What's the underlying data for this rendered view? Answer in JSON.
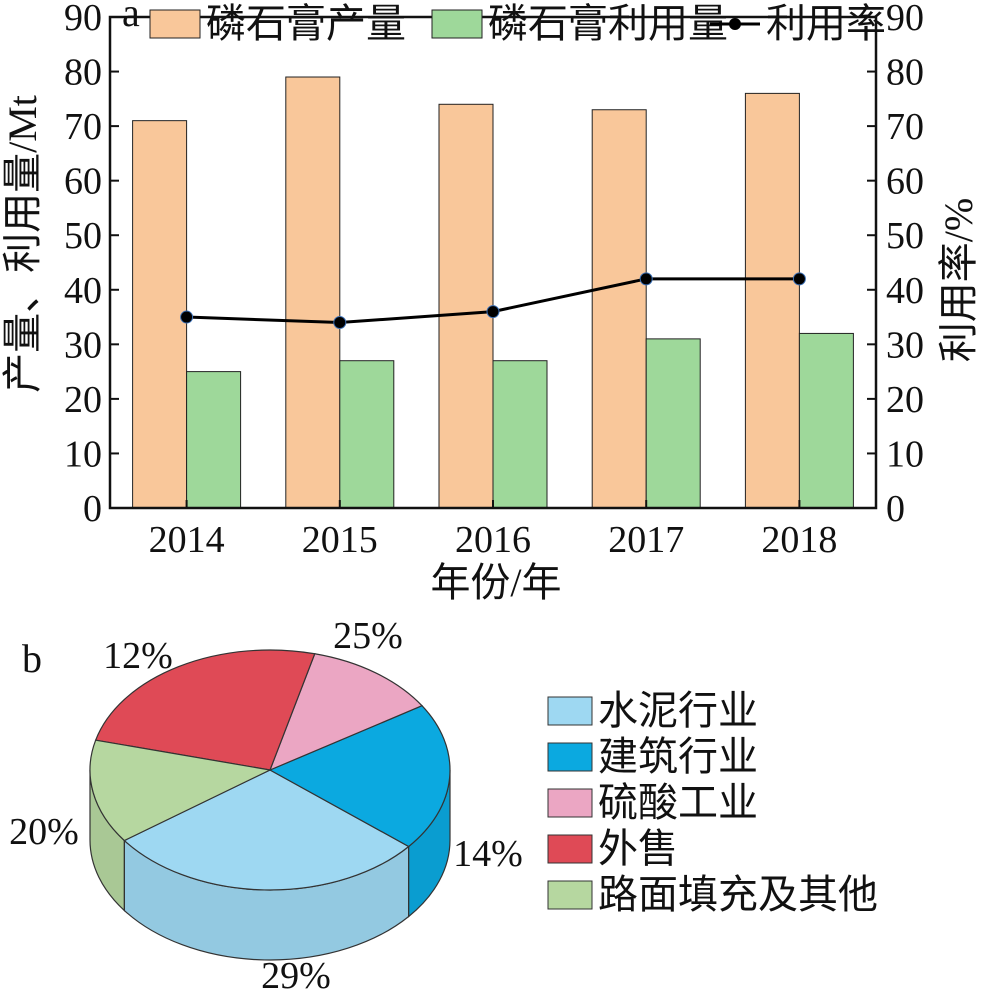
{
  "chart_data": [
    {
      "panel_label": "a",
      "type": "bar",
      "categories": [
        "2014",
        "2015",
        "2016",
        "2017",
        "2018"
      ],
      "series": [
        {
          "name": "磷石膏产量",
          "kind": "bar",
          "axis": "left",
          "color": "#F9C79A",
          "values": [
            71,
            79,
            74,
            73,
            76
          ]
        },
        {
          "name": "磷石膏利用量",
          "kind": "bar",
          "axis": "left",
          "color": "#9ED89A",
          "values": [
            25,
            27,
            27,
            31,
            32
          ]
        },
        {
          "name": "利用率",
          "kind": "line",
          "axis": "right",
          "color": "#000000",
          "values": [
            35,
            34,
            36,
            42,
            42
          ]
        }
      ],
      "xlabel": "年份/年",
      "ylabel": "产量、利用量/Mt",
      "y2label": "利用率/%",
      "ylim": [
        0,
        90
      ],
      "y2lim": [
        0,
        90
      ],
      "yticks": [
        0,
        10,
        20,
        30,
        40,
        50,
        60,
        70,
        80,
        90
      ],
      "legend_position": "top",
      "grid": false
    },
    {
      "panel_label": "b",
      "type": "pie",
      "style": "3d",
      "slices": [
        {
          "name": "水泥行业",
          "value": 29,
          "label": "29%",
          "color": "#9ED8F2"
        },
        {
          "name": "建筑行业",
          "value": 20,
          "label": "20%",
          "color": "#0BA9E0"
        },
        {
          "name": "硫酸工业",
          "value": 12,
          "label": "12%",
          "color": "#EBA6C3"
        },
        {
          "name": "外售",
          "value": 25,
          "label": "25%",
          "color": "#DF4A56"
        },
        {
          "name": "路面填充及其他",
          "value": 14,
          "label": "14%",
          "color": "#B6D7A0"
        }
      ],
      "legend_position": "right"
    }
  ]
}
